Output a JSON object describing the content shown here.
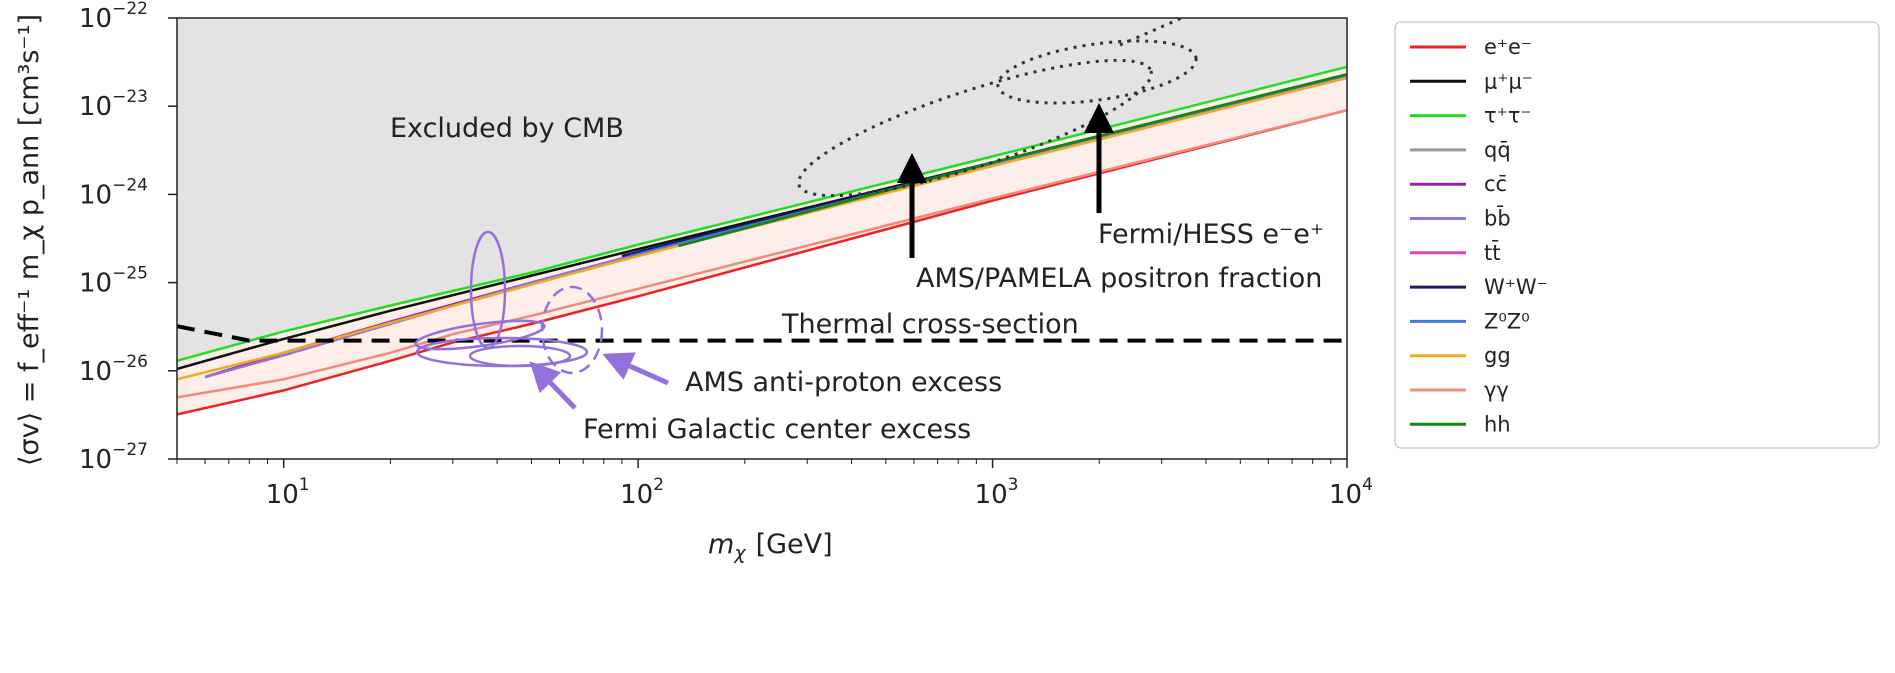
{
  "chart_data": {
    "type": "line",
    "xlabel_main": "m",
    "xlabel_sub": "χ",
    "xlabel_unit": "[GeV]",
    "ylabel": "⟨σv⟩ = f_eff⁻¹ m_χ p_ann [cm³s⁻¹]",
    "xscale": "log",
    "yscale": "log",
    "xlim": [
      5,
      10000
    ],
    "ylim": [
      1e-27,
      1e-22
    ],
    "x_ticks": [
      {
        "value": 10,
        "base": "10",
        "exp": "1"
      },
      {
        "value": 100,
        "base": "10",
        "exp": "2"
      },
      {
        "value": 1000,
        "base": "10",
        "exp": "3"
      },
      {
        "value": 10000,
        "base": "10",
        "exp": "4"
      }
    ],
    "y_ticks": [
      {
        "value": 1e-27,
        "base": "10",
        "exp": "−27"
      },
      {
        "value": 1e-26,
        "base": "10",
        "exp": "−26"
      },
      {
        "value": 1e-25,
        "base": "10",
        "exp": "−25"
      },
      {
        "value": 1e-24,
        "base": "10",
        "exp": "−24"
      },
      {
        "value": 1e-23,
        "base": "10",
        "exp": "−23"
      },
      {
        "value": 1e-22,
        "base": "10",
        "exp": "−22"
      }
    ],
    "excluded_region_label": "Excluded by CMB",
    "thermal_label": "Thermal cross-section",
    "thermal_line": {
      "x": [
        5,
        8,
        10000
      ],
      "y": [
        3.2e-26,
        2.2e-26,
        2.2e-26
      ]
    },
    "series": [
      {
        "name": "e⁺e⁻",
        "color": "#ee2222",
        "x": [
          5,
          10,
          20,
          30,
          50,
          100,
          1000,
          10000
        ],
        "y": [
          3.2e-27,
          6e-27,
          1.3e-26,
          2.1e-26,
          3.4e-26,
          7e-26,
          8.5e-25,
          9e-24
        ]
      },
      {
        "name": "μ⁺μ⁻",
        "color": "#111111",
        "x": [
          5,
          10,
          20,
          50,
          100,
          1000,
          10000
        ],
        "y": [
          1.05e-26,
          2.3e-26,
          4.8e-26,
          1.2e-25,
          2.4e-25,
          2.3e-24,
          2.2e-23
        ]
      },
      {
        "name": "τ⁺τ⁻",
        "color": "#22dd22",
        "x": [
          5,
          10,
          20,
          50,
          100,
          1000,
          10000
        ],
        "y": [
          1.3e-26,
          2.8e-26,
          5.5e-26,
          1.3e-25,
          2.7e-25,
          2.7e-24,
          2.8e-23
        ]
      },
      {
        "name": "qq̄",
        "color": "#999999",
        "x": [
          6,
          10,
          20,
          50,
          100,
          1000,
          10000
        ],
        "y": [
          8.5e-27,
          1.6e-26,
          3.6e-26,
          1e-25,
          2.1e-25,
          2.2e-24,
          2.1e-23
        ]
      },
      {
        "name": "cc̄",
        "color": "#9922aa",
        "x": [
          6,
          10,
          20,
          50,
          100,
          1000,
          10000
        ],
        "y": [
          8.5e-27,
          1.6e-26,
          3.6e-26,
          1e-25,
          2.1e-25,
          2.2e-24,
          2.1e-23
        ]
      },
      {
        "name": "bb̄",
        "color": "#9370db",
        "x": [
          6,
          10,
          20,
          50,
          100,
          1000,
          10000
        ],
        "y": [
          8.5e-27,
          1.5e-26,
          3.4e-26,
          1e-25,
          2.1e-25,
          2.2e-24,
          2.1e-23
        ]
      },
      {
        "name": "tt̄",
        "color": "#dd44cc",
        "x": [
          200,
          1000,
          10000
        ],
        "y": [
          4.2e-25,
          2.2e-24,
          2.2e-23
        ]
      },
      {
        "name": "W⁺W⁻",
        "color": "#1a1a6e",
        "x": [
          90,
          1000,
          10000
        ],
        "y": [
          2e-25,
          2.3e-24,
          2.3e-23
        ]
      },
      {
        "name": "Z⁰Z⁰",
        "color": "#4477dd",
        "x": [
          95,
          1000,
          10000
        ],
        "y": [
          2e-25,
          2.25e-24,
          2.25e-23
        ]
      },
      {
        "name": "gg",
        "color": "#eeaa22",
        "x": [
          5,
          10,
          20,
          50,
          100,
          1000,
          10000
        ],
        "y": [
          8e-27,
          1.6e-26,
          3.5e-26,
          9.5e-26,
          2e-25,
          2.1e-24,
          2.1e-23
        ]
      },
      {
        "name": "γγ",
        "color": "#f08a7a",
        "x": [
          5,
          10,
          20,
          30,
          50,
          100,
          1000,
          10000
        ],
        "y": [
          5e-27,
          8e-27,
          1.6e-26,
          2.6e-26,
          4.2e-26,
          8.5e-26,
          9e-25,
          9e-24
        ]
      },
      {
        "name": "hh",
        "color": "#118811",
        "x": [
          130,
          1000,
          10000
        ],
        "y": [
          2.6e-25,
          2.3e-24,
          2.3e-23
        ]
      }
    ],
    "regions": [
      {
        "label": "Fermi/HESS e⁻e⁺",
        "arrow_x": 2000,
        "arrow_y_from": 1.3e-24,
        "arrow_y_to": 1.3e-23
      },
      {
        "label": "AMS/PAMELA positron fraction",
        "arrow_x": 600,
        "arrow_y_from": 1.8e-25,
        "arrow_y_to": 3.5e-24
      },
      {
        "label": "AMS anti-proton excess"
      },
      {
        "label": "Fermi Galactic center excess"
      }
    ],
    "legend_position": "right"
  }
}
